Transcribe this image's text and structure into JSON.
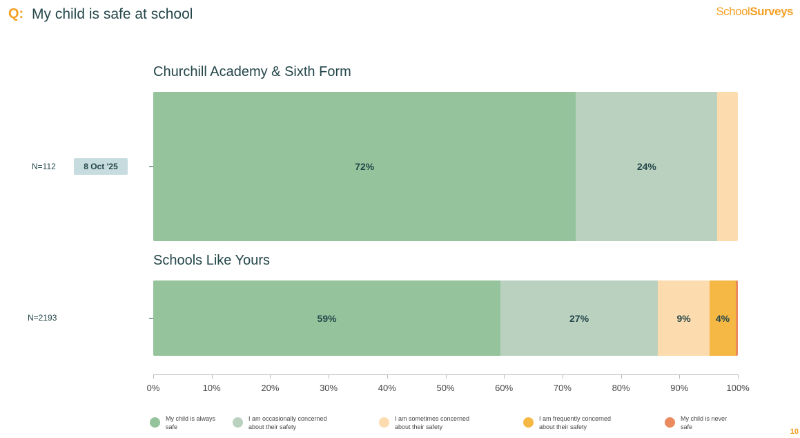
{
  "header": {
    "q_label": "Q:",
    "question": "My child is safe at school",
    "logo_part1": "School",
    "logo_part2": "Surveys"
  },
  "page_number": "10",
  "chart_data": {
    "type": "bar",
    "orientation": "horizontal-stacked-100",
    "xlim": [
      0,
      100
    ],
    "x_ticks": [
      "0%",
      "10%",
      "20%",
      "30%",
      "40%",
      "50%",
      "60%",
      "70%",
      "80%",
      "90%",
      "100%"
    ],
    "legend": [
      {
        "label": "My child is always safe",
        "color": "#95c49c"
      },
      {
        "label": "I am occasionally concerned about their safety",
        "color": "#bad1c0"
      },
      {
        "label": "I am sometimes concerned about their safety",
        "color": "#fcdcae"
      },
      {
        "label": "I am frequently concerned about their safety",
        "color": "#f6b844"
      },
      {
        "label": "My child is never safe",
        "color": "#ea8a5e"
      }
    ],
    "groups": [
      {
        "title": "Churchill Academy & Sixth Form",
        "n": "N=112",
        "date": "8 Oct '25",
        "values": [
          72.3,
          24.2,
          3.5,
          0,
          0
        ],
        "labels": [
          "72%",
          "24%",
          "",
          "",
          ""
        ]
      },
      {
        "title": "Schools Like Yours",
        "n": "N=2193",
        "values": [
          59.4,
          26.9,
          8.9,
          4.4,
          0.4
        ],
        "labels": [
          "59%",
          "27%",
          "9%",
          "4%",
          ""
        ]
      }
    ]
  }
}
